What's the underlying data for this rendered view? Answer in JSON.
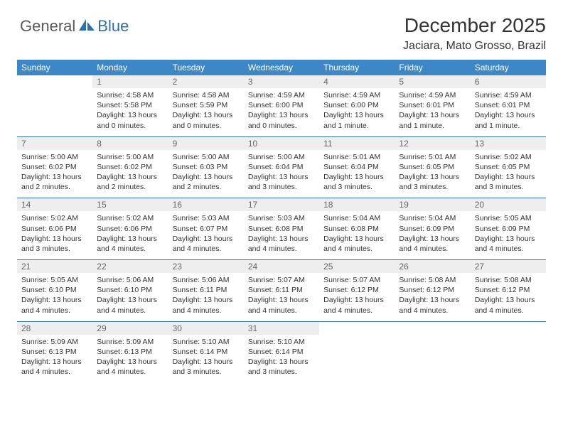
{
  "brand": {
    "general": "General",
    "blue": "Blue"
  },
  "title": "December 2025",
  "location": "Jaciara, Mato Grosso, Brazil",
  "colors": {
    "header_bg": "#3d87c7",
    "header_text": "#ffffff",
    "daynum_bg": "#eeeeee",
    "rule": "#2f6fa8",
    "logo_gray": "#5a5a5a",
    "logo_blue": "#2f6fa8"
  },
  "days_of_week": [
    "Sunday",
    "Monday",
    "Tuesday",
    "Wednesday",
    "Thursday",
    "Friday",
    "Saturday"
  ],
  "weeks": [
    [
      {
        "num": "",
        "sunrise": "",
        "sunset": "",
        "daylight": ""
      },
      {
        "num": "1",
        "sunrise": "Sunrise: 4:58 AM",
        "sunset": "Sunset: 5:58 PM",
        "daylight": "Daylight: 13 hours and 0 minutes."
      },
      {
        "num": "2",
        "sunrise": "Sunrise: 4:58 AM",
        "sunset": "Sunset: 5:59 PM",
        "daylight": "Daylight: 13 hours and 0 minutes."
      },
      {
        "num": "3",
        "sunrise": "Sunrise: 4:59 AM",
        "sunset": "Sunset: 6:00 PM",
        "daylight": "Daylight: 13 hours and 0 minutes."
      },
      {
        "num": "4",
        "sunrise": "Sunrise: 4:59 AM",
        "sunset": "Sunset: 6:00 PM",
        "daylight": "Daylight: 13 hours and 1 minute."
      },
      {
        "num": "5",
        "sunrise": "Sunrise: 4:59 AM",
        "sunset": "Sunset: 6:01 PM",
        "daylight": "Daylight: 13 hours and 1 minute."
      },
      {
        "num": "6",
        "sunrise": "Sunrise: 4:59 AM",
        "sunset": "Sunset: 6:01 PM",
        "daylight": "Daylight: 13 hours and 1 minute."
      }
    ],
    [
      {
        "num": "7",
        "sunrise": "Sunrise: 5:00 AM",
        "sunset": "Sunset: 6:02 PM",
        "daylight": "Daylight: 13 hours and 2 minutes."
      },
      {
        "num": "8",
        "sunrise": "Sunrise: 5:00 AM",
        "sunset": "Sunset: 6:02 PM",
        "daylight": "Daylight: 13 hours and 2 minutes."
      },
      {
        "num": "9",
        "sunrise": "Sunrise: 5:00 AM",
        "sunset": "Sunset: 6:03 PM",
        "daylight": "Daylight: 13 hours and 2 minutes."
      },
      {
        "num": "10",
        "sunrise": "Sunrise: 5:00 AM",
        "sunset": "Sunset: 6:04 PM",
        "daylight": "Daylight: 13 hours and 3 minutes."
      },
      {
        "num": "11",
        "sunrise": "Sunrise: 5:01 AM",
        "sunset": "Sunset: 6:04 PM",
        "daylight": "Daylight: 13 hours and 3 minutes."
      },
      {
        "num": "12",
        "sunrise": "Sunrise: 5:01 AM",
        "sunset": "Sunset: 6:05 PM",
        "daylight": "Daylight: 13 hours and 3 minutes."
      },
      {
        "num": "13",
        "sunrise": "Sunrise: 5:02 AM",
        "sunset": "Sunset: 6:05 PM",
        "daylight": "Daylight: 13 hours and 3 minutes."
      }
    ],
    [
      {
        "num": "14",
        "sunrise": "Sunrise: 5:02 AM",
        "sunset": "Sunset: 6:06 PM",
        "daylight": "Daylight: 13 hours and 3 minutes."
      },
      {
        "num": "15",
        "sunrise": "Sunrise: 5:02 AM",
        "sunset": "Sunset: 6:06 PM",
        "daylight": "Daylight: 13 hours and 4 minutes."
      },
      {
        "num": "16",
        "sunrise": "Sunrise: 5:03 AM",
        "sunset": "Sunset: 6:07 PM",
        "daylight": "Daylight: 13 hours and 4 minutes."
      },
      {
        "num": "17",
        "sunrise": "Sunrise: 5:03 AM",
        "sunset": "Sunset: 6:08 PM",
        "daylight": "Daylight: 13 hours and 4 minutes."
      },
      {
        "num": "18",
        "sunrise": "Sunrise: 5:04 AM",
        "sunset": "Sunset: 6:08 PM",
        "daylight": "Daylight: 13 hours and 4 minutes."
      },
      {
        "num": "19",
        "sunrise": "Sunrise: 5:04 AM",
        "sunset": "Sunset: 6:09 PM",
        "daylight": "Daylight: 13 hours and 4 minutes."
      },
      {
        "num": "20",
        "sunrise": "Sunrise: 5:05 AM",
        "sunset": "Sunset: 6:09 PM",
        "daylight": "Daylight: 13 hours and 4 minutes."
      }
    ],
    [
      {
        "num": "21",
        "sunrise": "Sunrise: 5:05 AM",
        "sunset": "Sunset: 6:10 PM",
        "daylight": "Daylight: 13 hours and 4 minutes."
      },
      {
        "num": "22",
        "sunrise": "Sunrise: 5:06 AM",
        "sunset": "Sunset: 6:10 PM",
        "daylight": "Daylight: 13 hours and 4 minutes."
      },
      {
        "num": "23",
        "sunrise": "Sunrise: 5:06 AM",
        "sunset": "Sunset: 6:11 PM",
        "daylight": "Daylight: 13 hours and 4 minutes."
      },
      {
        "num": "24",
        "sunrise": "Sunrise: 5:07 AM",
        "sunset": "Sunset: 6:11 PM",
        "daylight": "Daylight: 13 hours and 4 minutes."
      },
      {
        "num": "25",
        "sunrise": "Sunrise: 5:07 AM",
        "sunset": "Sunset: 6:12 PM",
        "daylight": "Daylight: 13 hours and 4 minutes."
      },
      {
        "num": "26",
        "sunrise": "Sunrise: 5:08 AM",
        "sunset": "Sunset: 6:12 PM",
        "daylight": "Daylight: 13 hours and 4 minutes."
      },
      {
        "num": "27",
        "sunrise": "Sunrise: 5:08 AM",
        "sunset": "Sunset: 6:12 PM",
        "daylight": "Daylight: 13 hours and 4 minutes."
      }
    ],
    [
      {
        "num": "28",
        "sunrise": "Sunrise: 5:09 AM",
        "sunset": "Sunset: 6:13 PM",
        "daylight": "Daylight: 13 hours and 4 minutes."
      },
      {
        "num": "29",
        "sunrise": "Sunrise: 5:09 AM",
        "sunset": "Sunset: 6:13 PM",
        "daylight": "Daylight: 13 hours and 4 minutes."
      },
      {
        "num": "30",
        "sunrise": "Sunrise: 5:10 AM",
        "sunset": "Sunset: 6:14 PM",
        "daylight": "Daylight: 13 hours and 3 minutes."
      },
      {
        "num": "31",
        "sunrise": "Sunrise: 5:10 AM",
        "sunset": "Sunset: 6:14 PM",
        "daylight": "Daylight: 13 hours and 3 minutes."
      },
      {
        "num": "",
        "sunrise": "",
        "sunset": "",
        "daylight": ""
      },
      {
        "num": "",
        "sunrise": "",
        "sunset": "",
        "daylight": ""
      },
      {
        "num": "",
        "sunrise": "",
        "sunset": "",
        "daylight": ""
      }
    ]
  ]
}
